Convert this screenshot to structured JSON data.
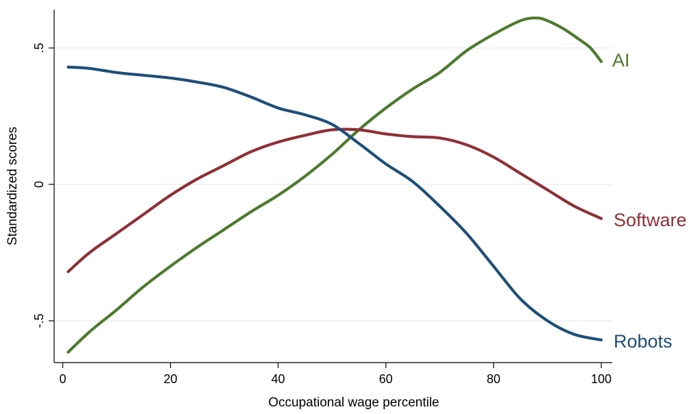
{
  "chart_data": {
    "type": "line",
    "title": "",
    "xlabel": "Occupational wage percentile",
    "ylabel": "Standardized scores",
    "xlim": [
      0,
      100
    ],
    "ylim": [
      -0.65,
      0.65
    ],
    "xticks": [
      0,
      20,
      40,
      60,
      80,
      100
    ],
    "xtick_labels": [
      "0",
      "20",
      "40",
      "60",
      "80",
      "100"
    ],
    "yticks": [
      -0.5,
      0,
      0.5
    ],
    "ytick_labels": [
      "-.5",
      "0",
      ".5"
    ],
    "grid": "horizontal",
    "legend": "labels at line ends (right)",
    "series": [
      {
        "name": "AI",
        "color": "#4d7a2e",
        "x": [
          1,
          5,
          10,
          15,
          20,
          25,
          30,
          35,
          40,
          45,
          50,
          55,
          60,
          65,
          70,
          75,
          80,
          85,
          88,
          90,
          93,
          96,
          98,
          100
        ],
        "y": [
          -0.615,
          -0.54,
          -0.46,
          -0.375,
          -0.3,
          -0.23,
          -0.165,
          -0.1,
          -0.04,
          0.03,
          0.11,
          0.2,
          0.28,
          0.35,
          0.41,
          0.49,
          0.55,
          0.6,
          0.61,
          0.6,
          0.57,
          0.53,
          0.5,
          0.45
        ]
      },
      {
        "name": "Software",
        "color": "#8e3036",
        "x": [
          1,
          5,
          10,
          15,
          20,
          25,
          30,
          35,
          40,
          45,
          50,
          55,
          60,
          65,
          70,
          75,
          80,
          85,
          90,
          95,
          100
        ],
        "y": [
          -0.32,
          -0.25,
          -0.18,
          -0.11,
          -0.04,
          0.02,
          0.07,
          0.12,
          0.155,
          0.18,
          0.2,
          0.2,
          0.185,
          0.175,
          0.17,
          0.145,
          0.1,
          0.04,
          -0.02,
          -0.08,
          -0.125
        ]
      },
      {
        "name": "Robots",
        "color": "#1f4e79",
        "x": [
          1,
          5,
          10,
          15,
          20,
          25,
          30,
          35,
          40,
          45,
          50,
          55,
          60,
          65,
          70,
          75,
          80,
          85,
          90,
          95,
          100
        ],
        "y": [
          0.43,
          0.425,
          0.41,
          0.4,
          0.39,
          0.375,
          0.355,
          0.32,
          0.28,
          0.255,
          0.22,
          0.15,
          0.075,
          0.01,
          -0.08,
          -0.18,
          -0.3,
          -0.42,
          -0.5,
          -0.55,
          -0.57
        ]
      }
    ]
  }
}
